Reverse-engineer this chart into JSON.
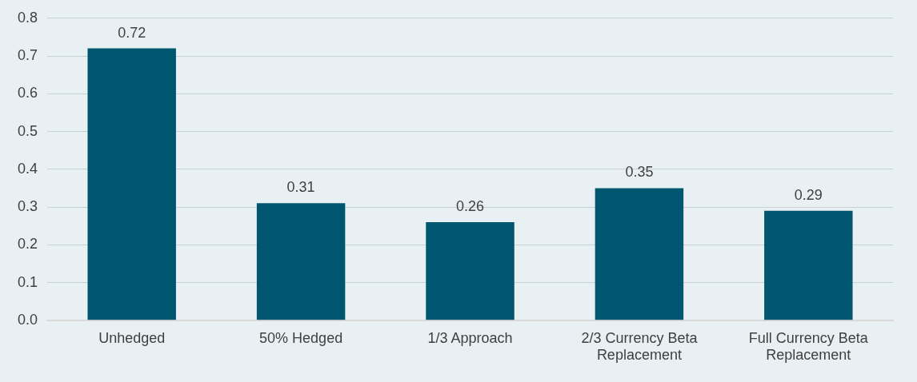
{
  "chart_data": {
    "type": "bar",
    "categories": [
      "Unhedged",
      "50% Hedged",
      "1/3 Approach",
      "2/3 Currency Beta Replacement",
      "Full Currency Beta Replacement"
    ],
    "values": [
      0.72,
      0.31,
      0.26,
      0.35,
      0.29
    ],
    "color": "#00566e",
    "ylim": [
      0,
      0.8
    ],
    "yticks": [
      {
        "value": 0,
        "label": "0.0"
      },
      0.1,
      0.2,
      0.3,
      0.4,
      0.5,
      0.6,
      0.7,
      0.8
    ],
    "grid": "y",
    "data_labels": true
  }
}
